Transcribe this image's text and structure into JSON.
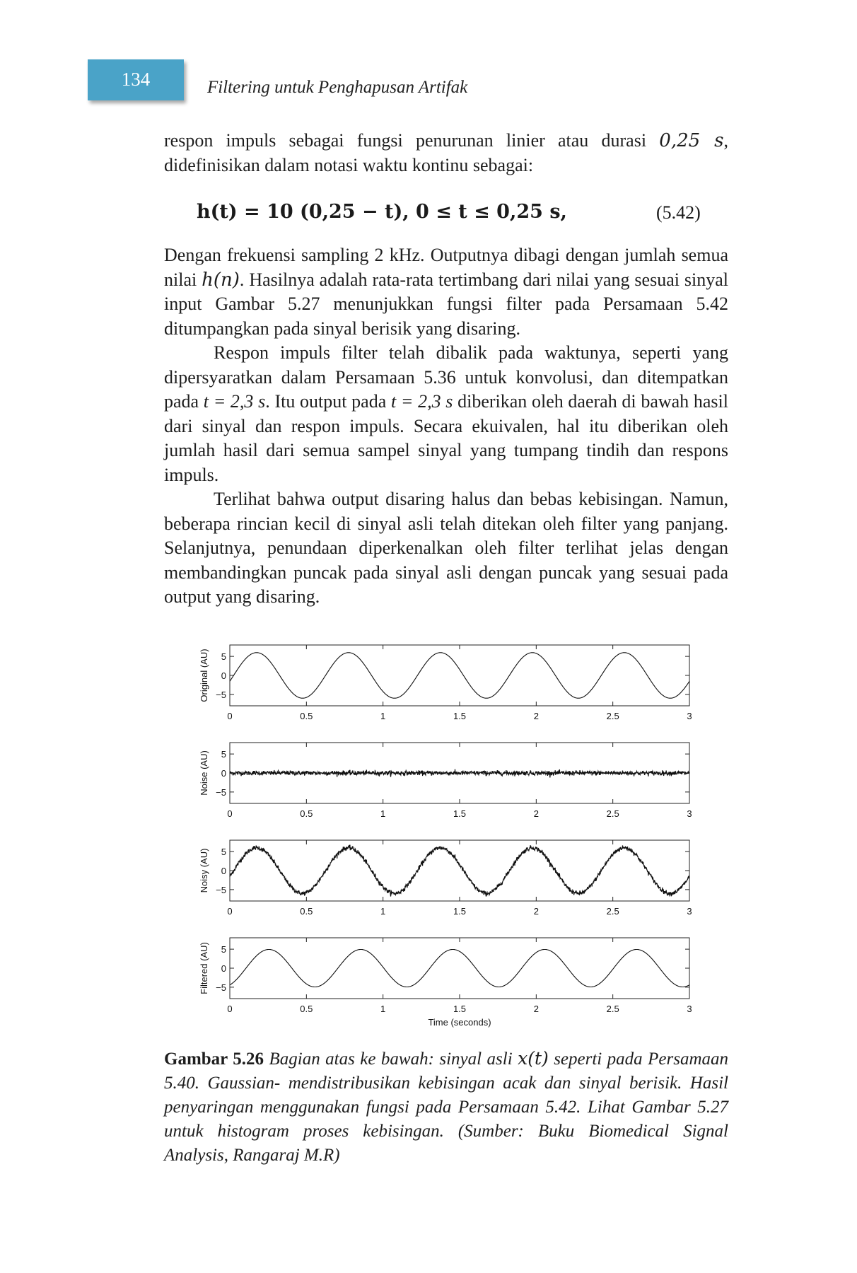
{
  "header": {
    "page_number": "134",
    "running_title": "Filtering untuk Penghapusan Artifak"
  },
  "paragraph_1": {
    "text_a": "respon impuls sebagai fungsi penurunan linier atau durasi ",
    "math_a": "0,25 s",
    "text_b": ", didefinisikan dalam notasi waktu kontinu sebagai:"
  },
  "equation": {
    "expression": "h(t) = 10 (0,25 − t), 0 ≤ t ≤ 0,25 s,",
    "number": "(5.42)"
  },
  "paragraph_2": {
    "text_a": "Dengan frekuensi sampling 2 kHz. Outputnya dibagi dengan jumlah semua nilai ",
    "math_a": "h(n)",
    "text_b": ". Hasilnya adalah rata-rata tertimbang dari nilai yang sesuai sinyal input Gambar 5.27 menunjukkan fungsi filter pada Persamaan 5.42 ditumpangkan pada sinyal berisik yang disaring."
  },
  "paragraph_3": {
    "text_a": "Respon impuls filter telah dibalik pada waktunya, seperti yang dipersyaratkan dalam Persamaan 5.36 untuk konvolusi, dan ditempatkan pada ",
    "math_a": "t = 2,3 s",
    "text_b": ". Itu output pada ",
    "math_b": "t = 2,3 s",
    "text_c": " diberikan oleh daerah di bawah hasil dari sinyal dan respon impuls. Secara ekuivalen, hal itu diberikan oleh jumlah hasil dari semua sampel sinyal yang tumpang tindih  dan respons impuls."
  },
  "paragraph_4": {
    "text": "Terlihat bahwa output disaring halus dan bebas kebisingan. Namun, beberapa rincian kecil di sinyal asli telah ditekan oleh filter yang panjang. Selanjutnya, penundaan diperkenalkan oleh filter terlihat jelas dengan membandingkan puncak pada sinyal asli dengan puncak yang sesuai pada output yang disaring."
  },
  "chart_data": [
    {
      "type": "line",
      "ylabel": "Original (AU)",
      "xlim": [
        0,
        3
      ],
      "ylim": [
        -8,
        8
      ],
      "x_ticks": [
        "0",
        "0.5",
        "1",
        "1.5",
        "2",
        "2.5",
        "3"
      ],
      "y_ticks": [
        "5",
        "0",
        "−5"
      ],
      "signal": "x(t)",
      "noise_std": 0,
      "smoothed": false
    },
    {
      "type": "line",
      "ylabel": "Noise (AU)",
      "xlim": [
        0,
        3
      ],
      "ylim": [
        -8,
        8
      ],
      "x_ticks": [
        "0",
        "0.5",
        "1",
        "1.5",
        "2",
        "2.5",
        "3"
      ],
      "y_ticks": [
        "5",
        "0",
        "−5"
      ],
      "signal": "gaussian noise",
      "noise_std": 0.3,
      "smoothed": false
    },
    {
      "type": "line",
      "ylabel": "Noisy (AU)",
      "xlim": [
        0,
        3
      ],
      "ylim": [
        -8,
        8
      ],
      "x_ticks": [
        "0",
        "0.5",
        "1",
        "1.5",
        "2",
        "2.5",
        "3"
      ],
      "y_ticks": [
        "5",
        "0",
        "−5"
      ],
      "signal": "x(t) + noise",
      "noise_std": 0.3,
      "smoothed": false
    },
    {
      "type": "line",
      "ylabel": "Filtered (AU)",
      "xlabel": "Time (seconds)",
      "xlim": [
        0,
        3
      ],
      "ylim": [
        -8,
        8
      ],
      "x_ticks": [
        "0",
        "0.5",
        "1",
        "1.5",
        "2",
        "2.5",
        "3"
      ],
      "y_ticks": [
        "5",
        "0",
        "−5"
      ],
      "signal": "filtered output",
      "noise_std": 0,
      "smoothed": true
    }
  ],
  "caption": {
    "label": "Gambar 5.26",
    "text_a": " Bagian atas ke bawah: sinyal asli ",
    "math_a": "x(t)",
    "text_b": " seperti pada Persamaan 5.40. Gaussian- mendistribusikan kebisingan acak dan sinyal berisik. Hasil penyaringan menggunakan fungsi pada Persamaan 5.42. Lihat Gambar 5.27 untuk histogram proses kebisingan. (Sumber: Buku Biomedical Signal Analysis, Rangaraj M.R)"
  }
}
